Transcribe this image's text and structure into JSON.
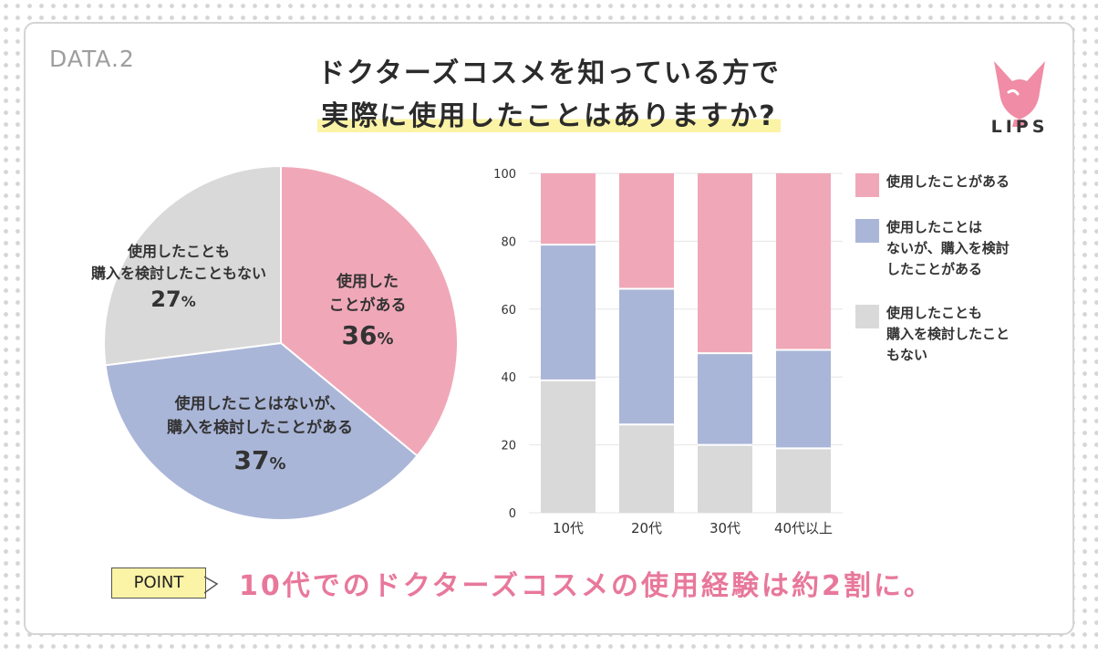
{
  "header": {
    "data_tag": "DATA.2",
    "title_line1": "ドクターズコスメを知っている方で",
    "title_line2": "実際に使用したことはありますか?"
  },
  "brand": {
    "logo_text": "LIPS",
    "logo_color": "#f08ca5"
  },
  "colors": {
    "used": "#f0a8b9",
    "considered": "#aab6d8",
    "neither": "#d9d9d9"
  },
  "chart_data": [
    {
      "type": "pie",
      "slices": [
        {
          "label_line1": "使用した",
          "label_line2": "ことがある",
          "value": 36,
          "value_text": "36",
          "unit": "%"
        },
        {
          "label_line1": "使用したことはないが、",
          "label_line2": "購入を検討したことがある",
          "value": 37,
          "value_text": "37",
          "unit": "%"
        },
        {
          "label_line1": "使用したことも",
          "label_line2": "購入を検討したこともない",
          "value": 27,
          "value_text": "27",
          "unit": "%"
        }
      ]
    },
    {
      "type": "bar",
      "stacked": true,
      "categories": [
        "10代",
        "20代",
        "30代",
        "40代以上"
      ],
      "series": [
        {
          "name": "使用したことも購入を検討したこともない",
          "values": [
            39,
            26,
            20,
            19
          ]
        },
        {
          "name": "使用したことはないが、購入を検討したことがある",
          "values": [
            40,
            40,
            27,
            29
          ]
        },
        {
          "name": "使用したことがある",
          "values": [
            21,
            34,
            53,
            52
          ]
        }
      ],
      "ylim": [
        0,
        100
      ],
      "yticks": [
        "0",
        "20",
        "40",
        "60",
        "80",
        "100"
      ]
    }
  ],
  "legend": [
    {
      "lines": [
        "使用したことがある"
      ]
    },
    {
      "lines": [
        "使用したことは",
        "ないが、購入を検討",
        "したことがある"
      ]
    },
    {
      "lines": [
        "使用したことも",
        "購入を検討したこと",
        "もない"
      ]
    }
  ],
  "point": {
    "label": "POINT",
    "text": "10代でのドクターズコスメの使用経験は約2割に。"
  }
}
